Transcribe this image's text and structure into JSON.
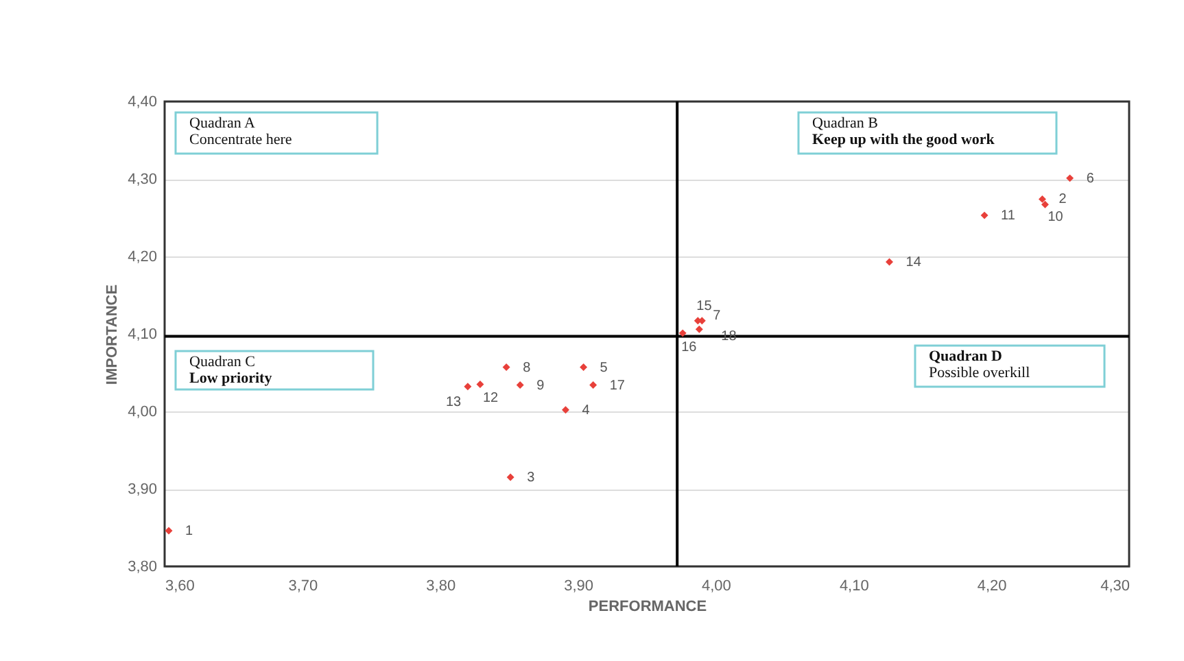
{
  "chart_data": {
    "type": "scatter",
    "xlabel": "PERFORMANCE",
    "ylabel": "IMPORTANCE",
    "x": [
      3.603,
      4.237,
      3.851,
      3.891,
      3.904,
      4.257,
      3.99,
      3.848,
      3.858,
      4.239,
      4.195,
      3.829,
      3.82,
      4.126,
      3.987,
      3.976,
      3.911,
      3.988
    ],
    "series": [
      {
        "color": "#e8403a",
        "values": [
          3.846,
          4.274,
          3.915,
          4.002,
          4.057,
          4.301,
          4.117,
          4.057,
          4.034,
          4.267,
          4.253,
          4.035,
          4.032,
          4.193,
          4.117,
          4.101,
          4.034,
          4.106
        ]
      }
    ],
    "marker": "diamond",
    "xlim": [
      3.6,
      4.3
    ],
    "xticks": [
      {
        "value": 3.6,
        "label": "3,60"
      },
      {
        "value": 3.7,
        "label": "3,70"
      },
      {
        "value": 3.8,
        "label": "3,80"
      },
      {
        "value": 3.9,
        "label": "3,90"
      },
      {
        "value": 4.0,
        "label": "4,00"
      },
      {
        "value": 4.1,
        "label": "4,10"
      },
      {
        "value": 4.2,
        "label": "4,20"
      },
      {
        "value": 4.3,
        "label": "4,30"
      }
    ],
    "ylim": [
      3.8,
      4.4
    ],
    "yticks": [
      {
        "value": 3.8,
        "label": "3,80"
      },
      {
        "value": 3.9,
        "label": "3,90"
      },
      {
        "value": 4.0,
        "label": "4,00"
      },
      {
        "value": 4.1,
        "label": "4,10"
      },
      {
        "value": 4.2,
        "label": "4,20"
      },
      {
        "value": 4.3,
        "label": "4,30"
      },
      {
        "value": 4.4,
        "label": "4,40"
      }
    ],
    "grid": "y",
    "ref_lines": [
      {
        "axis": "x",
        "value": 3.972,
        "color": "#000000"
      },
      {
        "axis": "y",
        "value": 4.097,
        "color": "#000000"
      }
    ],
    "annotations": [
      "Quadran A",
      "Concentrate here",
      "Quadran B",
      "Keep up with the good work",
      "Quadran C",
      "Low priority",
      "Quadran D",
      "Possible overkill",
      {
        "text": "1",
        "x": 3.603,
        "y": 3.846
      },
      {
        "text": "2",
        "x": 4.237,
        "y": 4.274
      },
      {
        "text": "3",
        "x": 3.851,
        "y": 3.915
      },
      {
        "text": "4",
        "x": 3.891,
        "y": 4.002
      },
      {
        "text": "5",
        "x": 3.904,
        "y": 4.057
      },
      {
        "text": "6",
        "x": 4.257,
        "y": 4.301
      },
      {
        "text": "7",
        "x": 3.99,
        "y": 4.117
      },
      {
        "text": "8",
        "x": 3.848,
        "y": 4.057
      },
      {
        "text": "9",
        "x": 3.858,
        "y": 4.034
      },
      {
        "text": "10",
        "x": 4.239,
        "y": 4.267
      },
      {
        "text": "11",
        "x": 4.195,
        "y": 4.253
      },
      {
        "text": "12",
        "x": 3.829,
        "y": 4.035
      },
      {
        "text": "13",
        "x": 3.82,
        "y": 4.032
      },
      {
        "text": "14",
        "x": 4.126,
        "y": 4.193
      },
      {
        "text": "15",
        "x": 3.987,
        "y": 4.117
      },
      {
        "text": "16",
        "x": 3.976,
        "y": 4.101
      },
      {
        "text": "17",
        "x": 3.911,
        "y": 4.034
      },
      {
        "text": "18",
        "x": 3.988,
        "y": 4.106
      }
    ]
  }
}
